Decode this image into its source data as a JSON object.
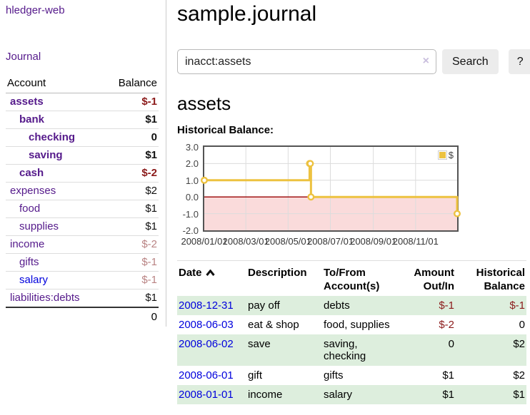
{
  "colors": {
    "link_unvisited": "#0000dd",
    "link_visited": "#551a8b",
    "negative_strong": "#8b1a1a",
    "negative_muted": "#b98383",
    "row_highlight_green": "#ddeedd",
    "chart_line": "#edc240",
    "chart_negative_region": "#fadbdb",
    "chart_zero_line": "#990000",
    "chart_border": "#545454",
    "grid_line": "#dcdcdc",
    "button_bg": "#ececec"
  },
  "sidebar": {
    "brand": "hledger-web",
    "nav": {
      "journal": "Journal"
    },
    "table": {
      "account_header": "Account",
      "balance_header": "Balance",
      "rows": [
        {
          "account": "assets",
          "balance": "$-1",
          "depth": 1,
          "in_current_account": true,
          "balance_style": "negative-strong"
        },
        {
          "account": "bank",
          "balance": "$1",
          "depth": 2,
          "in_current_account": true,
          "balance_style": "positive"
        },
        {
          "account": "checking",
          "balance": "0",
          "depth": 3,
          "in_current_account": true,
          "balance_style": "positive"
        },
        {
          "account": "saving",
          "balance": "$1",
          "depth": 3,
          "in_current_account": true,
          "balance_style": "positive"
        },
        {
          "account": "cash",
          "balance": "$-2",
          "depth": 2,
          "in_current_account": true,
          "balance_style": "negative-strong"
        },
        {
          "account": "expenses",
          "balance": "$2",
          "depth": 1,
          "in_current_account": false,
          "balance_style": "positive"
        },
        {
          "account": "food",
          "balance": "$1",
          "depth": 2,
          "in_current_account": false,
          "balance_style": "positive"
        },
        {
          "account": "supplies",
          "balance": "$1",
          "depth": 2,
          "in_current_account": false,
          "balance_style": "positive"
        },
        {
          "account": "income",
          "balance": "$-2",
          "depth": 1,
          "in_current_account": false,
          "balance_style": "negative-muted"
        },
        {
          "account": "gifts",
          "balance": "$-1",
          "depth": 2,
          "in_current_account": false,
          "balance_style": "negative-muted"
        },
        {
          "account": "salary",
          "balance": "$-1",
          "depth": 2,
          "in_current_account": false,
          "balance_style": "negative-muted",
          "link_state": "unvisited"
        },
        {
          "account": "liabilities:debts",
          "balance": "$1",
          "depth": 1,
          "in_current_account": false,
          "balance_style": "positive"
        }
      ],
      "total": "0"
    }
  },
  "main": {
    "title": "sample.journal",
    "search": {
      "value": "inacct:assets",
      "clear_icon": "×",
      "search_button": "Search",
      "help_button": "?"
    },
    "account_heading": "assets",
    "chart_heading": "Historical Balance:"
  },
  "chart_data": {
    "type": "line",
    "title": "Historical Balance:",
    "step": true,
    "x_range": [
      "2008-01-01",
      "2008-12-31"
    ],
    "ylim": [
      -2.0,
      3.0
    ],
    "y_ticks": [
      "3.0",
      "2.0",
      "1.0",
      "0.0",
      "-1.0",
      "-2.0"
    ],
    "x_tick_dates": [
      "2008-01-01",
      "2008-03-01",
      "2008-05-01",
      "2008-07-01",
      "2008-09-01",
      "2008-11-01"
    ],
    "x_tick_labels": [
      "2008/01/01",
      "2008/03/01",
      "2008/05/01",
      "2008/07/01",
      "2008/09/01",
      "2008/11/01"
    ],
    "grid": true,
    "legend_position": "top-right",
    "negative_region_shaded": true,
    "series": [
      {
        "name": "$",
        "color": "#edc240",
        "points": [
          {
            "date": "2008-01-01",
            "value": 1
          },
          {
            "date": "2008-06-01",
            "value": 2
          },
          {
            "date": "2008-06-02",
            "value": 2
          },
          {
            "date": "2008-06-03",
            "value": 0
          },
          {
            "date": "2008-12-31",
            "value": -1
          }
        ]
      }
    ]
  },
  "register": {
    "headers": {
      "date": "Date",
      "description": "Description",
      "tofrom_line1": "To/From",
      "tofrom_line2": "Account(s)",
      "amount_line1": "Amount",
      "amount_line2": "Out/In",
      "balance_line1": "Historical",
      "balance_line2": "Balance"
    },
    "sort": {
      "column": "date",
      "direction": "ascending"
    },
    "rows": [
      {
        "date": "2008-12-31",
        "description": "pay off",
        "accounts": "debts",
        "amount": "$-1",
        "amount_negative": true,
        "balance": "$-1",
        "balance_negative": true,
        "highlighted": true
      },
      {
        "date": "2008-06-03",
        "description": "eat & shop",
        "accounts": "food, supplies",
        "amount": "$-2",
        "amount_negative": true,
        "balance": "0",
        "balance_negative": false,
        "highlighted": false
      },
      {
        "date": "2008-06-02",
        "description": "save",
        "accounts": "saving, checking",
        "amount": "0",
        "amount_negative": false,
        "balance": "$2",
        "balance_negative": false,
        "highlighted": true
      },
      {
        "date": "2008-06-01",
        "description": "gift",
        "accounts": "gifts",
        "amount": "$1",
        "amount_negative": false,
        "balance": "$2",
        "balance_negative": false,
        "highlighted": false
      },
      {
        "date": "2008-01-01",
        "description": "income",
        "accounts": "salary",
        "amount": "$1",
        "amount_negative": false,
        "balance": "$1",
        "balance_negative": false,
        "highlighted": true
      }
    ]
  }
}
